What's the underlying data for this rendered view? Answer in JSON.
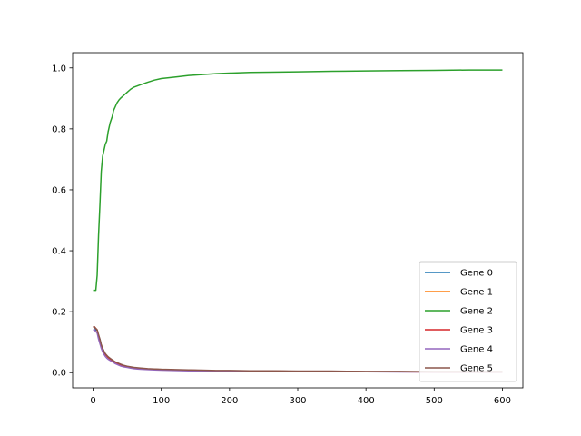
{
  "chart_data": {
    "type": "line",
    "title": "",
    "xlabel": "",
    "ylabel": "",
    "xlim": [
      -30,
      630
    ],
    "ylim": [
      -0.05,
      1.05
    ],
    "xticks": [
      0,
      100,
      200,
      300,
      400,
      500,
      600
    ],
    "yticks": [
      0.0,
      0.2,
      0.4,
      0.6,
      0.8,
      1.0
    ],
    "xtick_labels": [
      "0",
      "100",
      "200",
      "300",
      "400",
      "500",
      "600"
    ],
    "ytick_labels": [
      "0.0",
      "0.2",
      "0.4",
      "0.6",
      "0.8",
      "1.0"
    ],
    "grid": false,
    "legend_position": "lower-right",
    "x": [
      0,
      2,
      4,
      6,
      8,
      10,
      12,
      14,
      16,
      18,
      20,
      22,
      25,
      28,
      30,
      32,
      35,
      38,
      40,
      45,
      50,
      55,
      60,
      65,
      70,
      80,
      90,
      100,
      120,
      140,
      160,
      180,
      200,
      230,
      260,
      300,
      350,
      400,
      450,
      500,
      550,
      600
    ],
    "series": [
      {
        "name": "Gene 0",
        "color": "#1f77b4",
        "values": [
          0.15,
          0.15,
          0.14,
          0.14,
          0.12,
          0.11,
          0.09,
          0.08,
          0.07,
          0.06,
          0.055,
          0.05,
          0.045,
          0.04,
          0.038,
          0.035,
          0.032,
          0.028,
          0.026,
          0.022,
          0.02,
          0.018,
          0.016,
          0.015,
          0.014,
          0.012,
          0.011,
          0.01,
          0.009,
          0.008,
          0.007,
          0.006,
          0.006,
          0.005,
          0.005,
          0.004,
          0.004,
          0.003,
          0.003,
          0.003,
          0.002,
          0.002
        ]
      },
      {
        "name": "Gene 1",
        "color": "#ff7f0e",
        "values": [
          0.15,
          0.15,
          0.145,
          0.14,
          0.12,
          0.105,
          0.09,
          0.078,
          0.068,
          0.06,
          0.055,
          0.05,
          0.045,
          0.04,
          0.037,
          0.034,
          0.031,
          0.028,
          0.026,
          0.022,
          0.019,
          0.017,
          0.015,
          0.014,
          0.013,
          0.012,
          0.011,
          0.01,
          0.009,
          0.008,
          0.007,
          0.006,
          0.006,
          0.005,
          0.005,
          0.004,
          0.004,
          0.003,
          0.003,
          0.002,
          0.002,
          0.002
        ]
      },
      {
        "name": "Gene 2",
        "color": "#2ca02c",
        "values": [
          0.27,
          0.27,
          0.27,
          0.32,
          0.45,
          0.55,
          0.66,
          0.71,
          0.73,
          0.75,
          0.76,
          0.79,
          0.82,
          0.84,
          0.86,
          0.87,
          0.885,
          0.895,
          0.9,
          0.91,
          0.92,
          0.93,
          0.937,
          0.941,
          0.945,
          0.953,
          0.96,
          0.965,
          0.97,
          0.975,
          0.978,
          0.981,
          0.983,
          0.985,
          0.986,
          0.987,
          0.989,
          0.99,
          0.991,
          0.992,
          0.993,
          0.993
        ]
      },
      {
        "name": "Gene 3",
        "color": "#d62728",
        "values": [
          0.15,
          0.15,
          0.145,
          0.14,
          0.12,
          0.1,
          0.088,
          0.075,
          0.066,
          0.06,
          0.055,
          0.05,
          0.045,
          0.04,
          0.037,
          0.034,
          0.031,
          0.028,
          0.026,
          0.022,
          0.019,
          0.017,
          0.015,
          0.014,
          0.013,
          0.012,
          0.011,
          0.01,
          0.009,
          0.008,
          0.007,
          0.006,
          0.006,
          0.005,
          0.005,
          0.004,
          0.004,
          0.003,
          0.003,
          0.002,
          0.002,
          0.002
        ]
      },
      {
        "name": "Gene 4",
        "color": "#9467bd",
        "values": [
          0.14,
          0.14,
          0.135,
          0.13,
          0.11,
          0.095,
          0.08,
          0.068,
          0.06,
          0.053,
          0.048,
          0.044,
          0.04,
          0.036,
          0.033,
          0.03,
          0.027,
          0.024,
          0.022,
          0.019,
          0.017,
          0.015,
          0.013,
          0.012,
          0.011,
          0.01,
          0.009,
          0.008,
          0.007,
          0.006,
          0.006,
          0.005,
          0.005,
          0.004,
          0.004,
          0.003,
          0.003,
          0.003,
          0.002,
          0.002,
          0.002,
          0.002
        ]
      },
      {
        "name": "Gene 5",
        "color": "#8c564b",
        "values": [
          0.15,
          0.15,
          0.145,
          0.14,
          0.125,
          0.11,
          0.092,
          0.08,
          0.07,
          0.062,
          0.057,
          0.052,
          0.047,
          0.042,
          0.039,
          0.036,
          0.033,
          0.03,
          0.028,
          0.024,
          0.021,
          0.019,
          0.017,
          0.016,
          0.015,
          0.013,
          0.012,
          0.011,
          0.01,
          0.009,
          0.008,
          0.007,
          0.007,
          0.006,
          0.006,
          0.005,
          0.005,
          0.004,
          0.004,
          0.003,
          0.003,
          0.003
        ]
      }
    ]
  }
}
